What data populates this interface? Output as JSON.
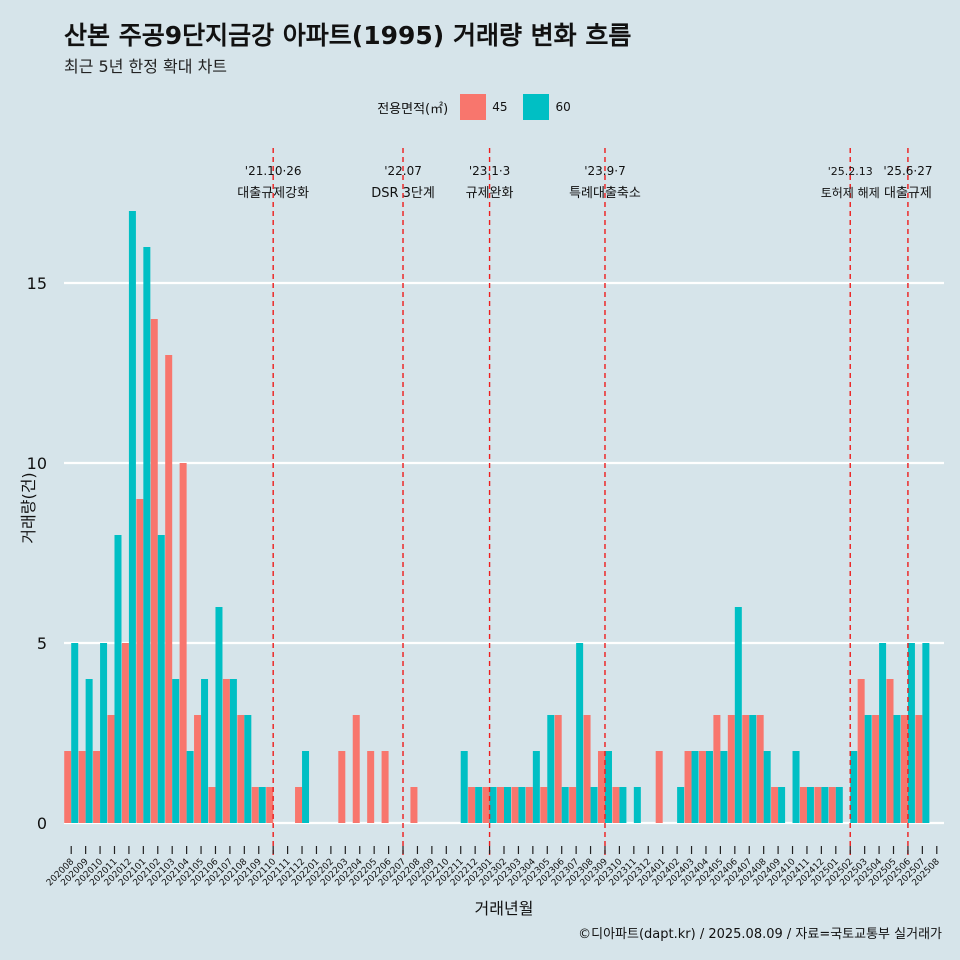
{
  "chart_data": {
    "type": "bar",
    "title": "산본 주공9단지금강 아파트(1995) 거래량 변화 흐름",
    "subtitle": "최근 5년 한정 확대 차트",
    "xlabel": "거래년월",
    "ylabel": "거래량(건)",
    "legend_title": "전용면적(㎡)",
    "legend_placement": "top",
    "caption": "©디아파트(dapt.kr) / 2025.08.09 / 자료=국토교통부 실거래가",
    "ylim": [
      -0.9,
      19.2
    ],
    "yticks": [
      0,
      5,
      10,
      15
    ],
    "categories": [
      "202008",
      "202009",
      "202010",
      "202011",
      "202012",
      "202101",
      "202102",
      "202103",
      "202104",
      "202105",
      "202106",
      "202107",
      "202108",
      "202109",
      "202110",
      "202111",
      "202112",
      "202201",
      "202202",
      "202203",
      "202204",
      "202205",
      "202206",
      "202207",
      "202208",
      "202209",
      "202210",
      "202211",
      "202212",
      "202301",
      "202302",
      "202303",
      "202304",
      "202305",
      "202306",
      "202307",
      "202308",
      "202309",
      "202310",
      "202311",
      "202312",
      "202401",
      "202402",
      "202403",
      "202404",
      "202405",
      "202406",
      "202407",
      "202408",
      "202409",
      "202410",
      "202411",
      "202412",
      "202501",
      "202502",
      "202503",
      "202504",
      "202505",
      "202506",
      "202507",
      "202508"
    ],
    "series": [
      {
        "name": "45",
        "color": "#f8766d",
        "values": [
          2,
          2,
          2,
          3,
          5,
          9,
          14,
          13,
          10,
          3,
          1,
          4,
          3,
          1,
          1,
          0,
          1,
          0,
          0,
          2,
          3,
          2,
          2,
          0,
          1,
          0,
          0,
          0,
          1,
          1,
          1,
          1,
          1,
          1,
          3,
          1,
          3,
          2,
          1,
          0,
          0,
          2,
          0,
          2,
          2,
          3,
          3,
          3,
          3,
          1,
          0,
          1,
          1,
          1,
          0,
          4,
          3,
          4,
          3,
          3,
          0
        ]
      },
      {
        "name": "60",
        "color": "#00bfc4",
        "values": [
          5,
          4,
          5,
          8,
          17,
          16,
          8,
          4,
          2,
          4,
          6,
          4,
          3,
          1,
          0,
          0,
          2,
          0,
          0,
          0,
          0,
          0,
          0,
          0,
          0,
          0,
          0,
          2,
          1,
          1,
          1,
          1,
          2,
          3,
          1,
          5,
          1,
          2,
          1,
          1,
          0,
          0,
          1,
          2,
          2,
          2,
          6,
          3,
          2,
          1,
          2,
          1,
          1,
          1,
          2,
          3,
          5,
          3,
          5,
          5,
          0
        ]
      }
    ],
    "events": [
      {
        "date": "'21.10·26",
        "label": "대출규제강화",
        "month": "202110"
      },
      {
        "date": "'22.07",
        "label": "DSR 3단계",
        "month": "202207"
      },
      {
        "date": "'23.1·3",
        "label": "규제완화",
        "month": "202301"
      },
      {
        "date": "'23.9·7",
        "label": "특례대출축소",
        "month": "202309"
      },
      {
        "date": "'25.2.13",
        "label": "토허제 해제",
        "month": "202502"
      },
      {
        "date": "'25.6·27",
        "label": "대출규제",
        "month": "202506"
      }
    ],
    "grid": true,
    "colors": {
      "background": "#d6e4ea",
      "grid": "#ffffff",
      "event_line": "#ee1c1c"
    }
  }
}
